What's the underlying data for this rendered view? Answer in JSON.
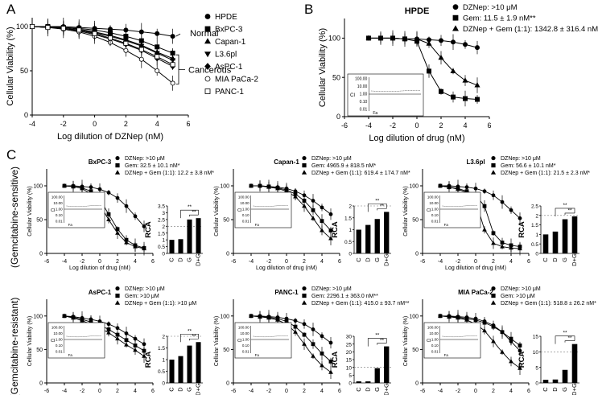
{
  "panel_letters": {
    "a": "A",
    "b": "B",
    "c": "C"
  },
  "row_labels": {
    "top": "(Gemcitabine-sensitive)",
    "bottom": "(Gemcitabine-resistant)"
  },
  "colors": {
    "ink": "#000000",
    "ref_line": "#777777"
  },
  "chart_data": [
    {
      "id": "A",
      "type": "line",
      "title": "",
      "xlabel": "Log dilution of DZNep (nM)",
      "ylabel": "Cellular Viability (%)",
      "xlim": [
        -4,
        6
      ],
      "ylim": [
        0,
        110
      ],
      "xticks": [
        "-4",
        "-2",
        "0",
        "2",
        "4",
        "6"
      ],
      "yticks": [
        "0",
        "50",
        "100"
      ],
      "x": [
        -4,
        -3,
        -2,
        -1,
        0,
        1,
        2,
        3,
        4,
        5
      ],
      "series": [
        {
          "name": "HPDE",
          "marker": "circle",
          "values": [
            100,
            100,
            100,
            99,
            98,
            97,
            96,
            94,
            92,
            89
          ]
        },
        {
          "name": "BxPC-3",
          "marker": "square",
          "values": [
            100,
            100,
            99,
            98,
            96,
            93,
            89,
            84,
            77,
            70
          ]
        },
        {
          "name": "Capan-1",
          "marker": "triangle",
          "values": [
            100,
            100,
            99,
            97,
            94,
            90,
            85,
            79,
            71,
            64
          ]
        },
        {
          "name": "L3.6pl",
          "marker": "invtriangle",
          "values": [
            100,
            99,
            98,
            96,
            93,
            89,
            84,
            78,
            70,
            62
          ]
        },
        {
          "name": "AsPC-1",
          "marker": "diamond",
          "values": [
            100,
            99,
            98,
            95,
            91,
            86,
            80,
            73,
            64,
            55
          ]
        },
        {
          "name": "MIA PaCa-2",
          "marker": "open-circle",
          "values": [
            100,
            99,
            97,
            94,
            89,
            82,
            73,
            63,
            50,
            36
          ]
        },
        {
          "name": "PANC-1",
          "marker": "open-square",
          "values": [
            100,
            99,
            98,
            96,
            92,
            87,
            81,
            74,
            66,
            57
          ]
        }
      ],
      "annotations": {
        "normal": "Normal",
        "cancerous": "Cancerous"
      }
    },
    {
      "id": "B",
      "type": "line",
      "title": "HPDE",
      "xlabel": "Log dilution of drug (nM)",
      "ylabel": "Cellular Viability (%)",
      "xlim": [
        -6,
        6
      ],
      "ylim": [
        0,
        125
      ],
      "xticks": [
        "-6",
        "-4",
        "-2",
        "0",
        "2",
        "4",
        "6"
      ],
      "yticks": [
        "0",
        "50",
        "100"
      ],
      "x": [
        -4,
        -3,
        -2,
        -1,
        0,
        1,
        2,
        3,
        4,
        5
      ],
      "series": [
        {
          "name": "DZNep: >10 μM",
          "marker": "circle",
          "values": [
            100,
            100,
            100,
            99,
            99,
            98,
            97,
            95,
            92,
            88
          ]
        },
        {
          "name": "Gem: 11.5 ± 1.9 nM**",
          "marker": "square",
          "values": [
            100,
            100,
            100,
            99,
            96,
            58,
            32,
            25,
            23,
            22
          ]
        },
        {
          "name": "DZNep + Gem (1:1): 1342.8 ± 316.4 nM**",
          "marker": "triangle",
          "values": [
            100,
            100,
            100,
            99,
            99,
            93,
            75,
            58,
            46,
            40
          ]
        }
      ],
      "inset": {
        "yticks": [
          "100.00",
          "10.00",
          "1.00",
          "0.10",
          "0.01"
        ],
        "ylabel": "CI",
        "xlabel": "Fa"
      }
    },
    {
      "id": "BxPC-3",
      "type": "line",
      "title": "BxPC-3",
      "xlabel": "Log dilution of drug (nM)",
      "ylabel": "Cellular Viability (%)",
      "xlim": [
        -6,
        6
      ],
      "ylim": [
        0,
        125
      ],
      "xticks": [
        "-6",
        "-4",
        "-2",
        "0",
        "2",
        "4",
        "6"
      ],
      "yticks": [
        "0",
        "50",
        "100"
      ],
      "x": [
        -4,
        -3,
        -2,
        -1,
        0,
        1,
        2,
        3,
        4,
        5
      ],
      "series": [
        {
          "name": "DZNep: >10 μM",
          "marker": "circle",
          "values": [
            100,
            100,
            99,
            98,
            95,
            90,
            82,
            70,
            55,
            40
          ]
        },
        {
          "name": "Gem: 32.5 ± 10.1 nM*",
          "marker": "square",
          "values": [
            100,
            99,
            97,
            92,
            80,
            58,
            36,
            20,
            12,
            8
          ]
        },
        {
          "name": "DZNep + Gem (1:1): 12.2 ± 3.8 nM*",
          "marker": "triangle",
          "values": [
            100,
            99,
            96,
            88,
            72,
            50,
            30,
            16,
            10,
            7
          ]
        }
      ],
      "inset": {
        "yticks": [
          "100.00",
          "10.00",
          "1.00",
          "0.10",
          "0.01"
        ],
        "ylabel": "CI",
        "xlabel": "Fa"
      },
      "rca": {
        "ylabel": "RCA",
        "categories": [
          "C",
          "D",
          "G",
          "D+G"
        ],
        "values": [
          1.0,
          1.05,
          2.5,
          2.6
        ],
        "ylim": [
          0,
          3.5
        ],
        "yticks": [
          "0",
          "0.5",
          "1",
          "1.5",
          "2",
          "2.5",
          "3",
          "3.5"
        ],
        "significance": "**"
      }
    },
    {
      "id": "Capan-1",
      "type": "line",
      "title": "Capan-1",
      "xlabel": "Log dilution of drug (nM)",
      "ylabel": "Cellular Viability (%)",
      "xlim": [
        -6,
        6
      ],
      "ylim": [
        0,
        125
      ],
      "xticks": [
        "-6",
        "-4",
        "-2",
        "0",
        "2",
        "4",
        "6"
      ],
      "yticks": [
        "0",
        "50",
        "100"
      ],
      "x": [
        -4,
        -3,
        -2,
        -1,
        0,
        1,
        2,
        3,
        4,
        5
      ],
      "series": [
        {
          "name": "DZNep: >10 μM",
          "marker": "circle",
          "values": [
            100,
            100,
            99,
            98,
            96,
            92,
            86,
            78,
            68,
            58
          ]
        },
        {
          "name": "Gem: 4965.9 ± 818.5 nM*",
          "marker": "square",
          "values": [
            100,
            100,
            99,
            97,
            94,
            88,
            78,
            64,
            48,
            34
          ]
        },
        {
          "name": "DZNep + Gem (1:1): 619.4 ± 174.7 nM*",
          "marker": "triangle",
          "values": [
            100,
            100,
            98,
            96,
            92,
            84,
            70,
            52,
            34,
            22
          ]
        }
      ],
      "inset": {
        "yticks": [
          "100.00",
          "10.00",
          "1.00",
          "0.10",
          "0.01"
        ],
        "ylabel": "CI",
        "xlabel": "Fa"
      },
      "rca": {
        "ylabel": "RCA",
        "categories": [
          "C",
          "D",
          "G",
          "D+G"
        ],
        "values": [
          1.0,
          1.2,
          1.45,
          1.75
        ],
        "ylim": [
          0,
          2
        ],
        "yticks": [
          "0",
          "0.5",
          "1",
          "1.5",
          "2"
        ],
        "significance": "**"
      }
    },
    {
      "id": "L3.6pl",
      "type": "line",
      "title": "L3.6pl",
      "xlabel": "Log dilution of drug (nM)",
      "ylabel": "Cellular Viability (%)",
      "xlim": [
        -6,
        6
      ],
      "ylim": [
        0,
        125
      ],
      "xticks": [
        "-6",
        "-4",
        "-2",
        "0",
        "2",
        "4",
        "6"
      ],
      "yticks": [
        "0",
        "50",
        "100"
      ],
      "x": [
        -4,
        -3,
        -2,
        -1,
        0,
        1,
        2,
        3,
        4,
        5
      ],
      "series": [
        {
          "name": "DZNep: >10 μM",
          "marker": "circle",
          "values": [
            100,
            100,
            99,
            98,
            96,
            92,
            86,
            76,
            64,
            52
          ]
        },
        {
          "name": "Gem: 56.6 ± 10.1 nM*",
          "marker": "square",
          "values": [
            100,
            98,
            96,
            92,
            86,
            70,
            30,
            16,
            12,
            10
          ]
        },
        {
          "name": "DZNep + Gem (1:1): 21.5 ± 2.3 nM*",
          "marker": "triangle",
          "values": [
            100,
            98,
            95,
            90,
            78,
            35,
            15,
            10,
            8,
            7
          ]
        }
      ],
      "inset": {
        "yticks": [
          "100.00",
          "10.00",
          "1.00",
          "0.10",
          "0.01"
        ],
        "ylabel": "CI",
        "xlabel": "Fa"
      },
      "rca": {
        "ylabel": "RCA",
        "categories": [
          "C",
          "D",
          "G",
          "D+G"
        ],
        "values": [
          1.0,
          1.15,
          1.8,
          1.95
        ],
        "ylim": [
          0,
          2.5
        ],
        "yticks": [
          "0",
          "0.5",
          "1",
          "1.5",
          "2",
          "2.5"
        ],
        "significance": "**"
      }
    },
    {
      "id": "AsPC-1",
      "type": "line",
      "title": "AsPC-1",
      "xlabel": "Log dilution of drug (nM)",
      "ylabel": "Cellular Viability (%)",
      "xlim": [
        -6,
        6
      ],
      "ylim": [
        0,
        125
      ],
      "xticks": [
        "-6",
        "-4",
        "-2",
        "0",
        "2",
        "4",
        "6"
      ],
      "yticks": [
        "0",
        "50",
        "100"
      ],
      "x": [
        -4,
        -3,
        -2,
        -1,
        0,
        1,
        2,
        3,
        4,
        5
      ],
      "series": [
        {
          "name": "DZNep: >10 μM",
          "marker": "circle",
          "values": [
            100,
            99,
            97,
            95,
            92,
            88,
            82,
            74,
            66,
            58
          ]
        },
        {
          "name": "Gem: >10 μM",
          "marker": "square",
          "values": [
            100,
            98,
            95,
            91,
            86,
            80,
            72,
            64,
            56,
            48
          ]
        },
        {
          "name": "DZNep + Gem (1:1): >10 μM",
          "marker": "triangle",
          "values": [
            100,
            97,
            93,
            88,
            82,
            75,
            66,
            57,
            49,
            40
          ]
        }
      ],
      "inset": {
        "yticks": [
          "100.00",
          "10.00",
          "1.00",
          "0.10",
          "0.01"
        ],
        "ylabel": "CI",
        "xlabel": "Fa"
      },
      "rca": {
        "ylabel": "RCA",
        "categories": [
          "C",
          "D",
          "G",
          "D+G"
        ],
        "values": [
          1.0,
          1.15,
          1.6,
          1.75
        ],
        "ylim": [
          0,
          2
        ],
        "yticks": [
          "0",
          "0.5",
          "1",
          "1.5",
          "2"
        ],
        "significance": "**"
      }
    },
    {
      "id": "PANC-1",
      "type": "line",
      "title": "PANC-1",
      "xlabel": "Log dilution of drug (nM)",
      "ylabel": "Cellular Viability (%)",
      "xlim": [
        -6,
        6
      ],
      "ylim": [
        0,
        125
      ],
      "xticks": [
        "-6",
        "-4",
        "-2",
        "0",
        "2",
        "4",
        "6"
      ],
      "yticks": [
        "0",
        "50",
        "100"
      ],
      "x": [
        -4,
        -3,
        -2,
        -1,
        0,
        1,
        2,
        3,
        4,
        5
      ],
      "series": [
        {
          "name": "DZNep: >10 μM",
          "marker": "circle",
          "values": [
            100,
            100,
            99,
            98,
            96,
            93,
            88,
            80,
            70,
            60
          ]
        },
        {
          "name": "Gem: 2296.1 ± 363.0 nM**",
          "marker": "square",
          "values": [
            100,
            99,
            98,
            96,
            92,
            84,
            72,
            58,
            44,
            32
          ]
        },
        {
          "name": "DZNep + Gem (1:1): 415.0 ± 93.7 nM**",
          "marker": "triangle",
          "values": [
            100,
            99,
            97,
            94,
            88,
            76,
            58,
            40,
            26,
            16
          ]
        }
      ],
      "inset": {
        "yticks": [
          "100.00",
          "10.00",
          "1.00",
          "0.10",
          "0.01"
        ],
        "ylabel": "CI",
        "xlabel": "Fa"
      },
      "rca": {
        "ylabel": "RCA",
        "categories": [
          "C",
          "D",
          "G",
          "D+G"
        ],
        "values": [
          1.0,
          1.0,
          9.5,
          23.5
        ],
        "ylim": [
          0,
          30
        ],
        "yticks": [
          "0",
          "5",
          "10",
          "15",
          "20",
          "25",
          "30"
        ],
        "significance": "**"
      }
    },
    {
      "id": "MIA PaCa-2",
      "type": "line",
      "title": "MIA PaCa-2",
      "xlabel": "Log dilution of drug (nM)",
      "ylabel": "Cellular Viability (%)",
      "xlim": [
        -6,
        6
      ],
      "ylim": [
        0,
        125
      ],
      "xticks": [
        "-6",
        "-4",
        "-2",
        "0",
        "2",
        "4",
        "6"
      ],
      "yticks": [
        "0",
        "50",
        "100"
      ],
      "x": [
        -4,
        -3,
        -2,
        -1,
        0,
        1,
        2,
        3,
        4,
        5
      ],
      "series": [
        {
          "name": "DZNep: >10 μM",
          "marker": "circle",
          "values": [
            100,
            100,
            99,
            98,
            96,
            92,
            86,
            76,
            62,
            48
          ]
        },
        {
          "name": "Gem: >10 μM",
          "marker": "square",
          "values": [
            100,
            99,
            98,
            96,
            94,
            90,
            84,
            76,
            66,
            56
          ]
        },
        {
          "name": "DZNep + Gem (1:1): 518.8 ± 26.2 nM*",
          "marker": "triangle",
          "values": [
            100,
            99,
            97,
            94,
            88,
            78,
            62,
            46,
            32,
            22
          ]
        }
      ],
      "inset": {
        "yticks": [
          "100.00",
          "10.00",
          "1.00",
          "0.10",
          "0.01"
        ],
        "ylabel": "CI",
        "xlabel": "Fa"
      },
      "rca": {
        "ylabel": "RCA",
        "categories": [
          "C",
          "D",
          "G",
          "D+G"
        ],
        "values": [
          1.0,
          1.1,
          4.2,
          12.5
        ],
        "ylim": [
          0,
          15
        ],
        "yticks": [
          "0",
          "5",
          "10",
          "15"
        ],
        "significance": "**"
      }
    }
  ]
}
